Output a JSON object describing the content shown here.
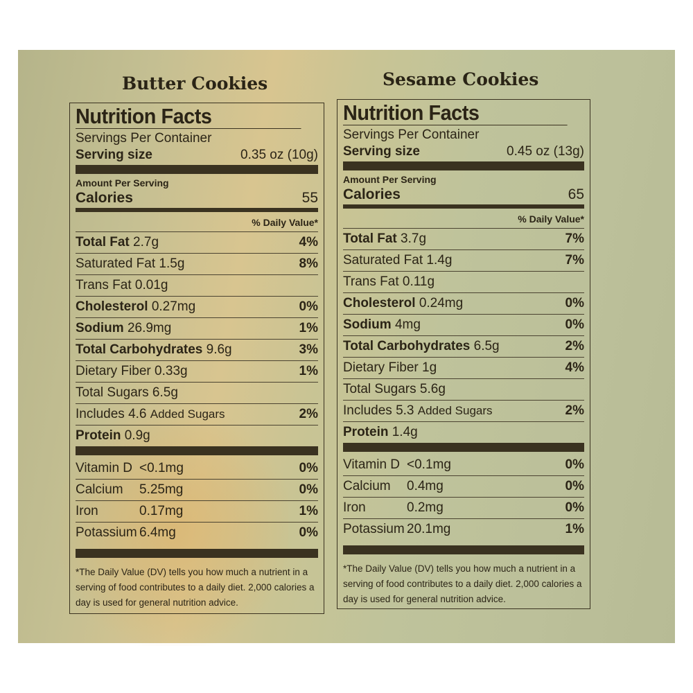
{
  "products": [
    {
      "name": "Butter Cookies",
      "label": {
        "title": "Nutrition Facts",
        "servings_per_container": "Servings Per Container",
        "serving_size_label": "Serving size",
        "serving_size_value": "0.35 oz (10g)",
        "amount_per_serving": "Amount Per Serving",
        "calories_label": "Calories",
        "calories_value": "55",
        "dv_header": "% Daily Value*",
        "nutrients": [
          {
            "name": "Total Fat",
            "amount": "2.7g",
            "dv": "4%"
          },
          {
            "name": "Saturated Fat",
            "amount": "1.5g",
            "dv": "8%"
          },
          {
            "name": "Trans Fat",
            "amount": "0.01g",
            "dv": ""
          },
          {
            "name": "Cholesterol",
            "amount": "0.27mg",
            "dv": "0%"
          },
          {
            "name": "Sodium",
            "amount": "26.9mg",
            "dv": "1%"
          },
          {
            "name": "Total Carbohydrates",
            "amount": "9.6g",
            "dv": "3%"
          },
          {
            "name": "Dietary Fiber",
            "amount": "0.33g",
            "dv": "1%"
          },
          {
            "name": "Total Sugars",
            "amount": "6.5g",
            "dv": ""
          },
          {
            "name": "Includes",
            "amount": "4.6",
            "suffix": "Added Sugars",
            "dv": "2%"
          },
          {
            "name": "Protein",
            "amount": "0.9g",
            "dv": ""
          }
        ],
        "minerals": [
          {
            "name": "Vitamin D",
            "amount": "<0.1mg",
            "dv": "0%"
          },
          {
            "name": "Calcium",
            "amount": "5.25mg",
            "dv": "0%"
          },
          {
            "name": "Iron",
            "amount": "0.17mg",
            "dv": "1%"
          },
          {
            "name": "Potassium",
            "amount": "6.4mg",
            "dv": "0%"
          }
        ],
        "footnote": [
          "*The Daily Value (DV) tells you how much a nutrient in a",
          "serving of food contributes to a daily diet. 2,000 calories a",
          "day is used for general nutrition advice."
        ]
      }
    },
    {
      "name": "Sesame Cookies",
      "label": {
        "title": "Nutrition Facts",
        "servings_per_container": "Servings Per Container",
        "serving_size_label": "Serving size",
        "serving_size_value": "0.45 oz (13g)",
        "amount_per_serving": "Amount Per Serving",
        "calories_label": "Calories",
        "calories_value": "65",
        "dv_header": "% Daily Value*",
        "nutrients": [
          {
            "name": "Total Fat",
            "amount": "3.7g",
            "dv": "7%"
          },
          {
            "name": "Saturated Fat",
            "amount": "1.4g",
            "dv": "7%"
          },
          {
            "name": "Trans Fat",
            "amount": "0.11g",
            "dv": ""
          },
          {
            "name": "Cholesterol",
            "amount": "0.24mg",
            "dv": "0%"
          },
          {
            "name": "Sodium",
            "amount": "4mg",
            "dv": "0%"
          },
          {
            "name": "Total Carbohydrates",
            "amount": "6.5g",
            "dv": "2%"
          },
          {
            "name": "Dietary Fiber",
            "amount": "1g",
            "dv": "4%"
          },
          {
            "name": "Total Sugars",
            "amount": "5.6g",
            "dv": ""
          },
          {
            "name": "Includes",
            "amount": "5.3",
            "suffix": "Added Sugars",
            "dv": "2%"
          },
          {
            "name": "Protein",
            "amount": "1.4g",
            "dv": ""
          }
        ],
        "minerals": [
          {
            "name": "Vitamin D",
            "amount": "<0.1mg",
            "dv": "0%"
          },
          {
            "name": "Calcium",
            "amount": "0.4mg",
            "dv": "0%"
          },
          {
            "name": "Iron",
            "amount": "0.2mg",
            "dv": "0%"
          },
          {
            "name": "Potassium",
            "amount": "20.1mg",
            "dv": "1%"
          }
        ],
        "footnote": [
          "*The Daily Value (DV) tells you how much a nutrient in a",
          "serving of food contributes to a daily diet. 2,000 calories a",
          "day is used for general nutrition advice."
        ]
      }
    }
  ],
  "colors": {
    "panel": "#c4c096",
    "ink": "#2b2416",
    "white_background": "#ffffff"
  }
}
